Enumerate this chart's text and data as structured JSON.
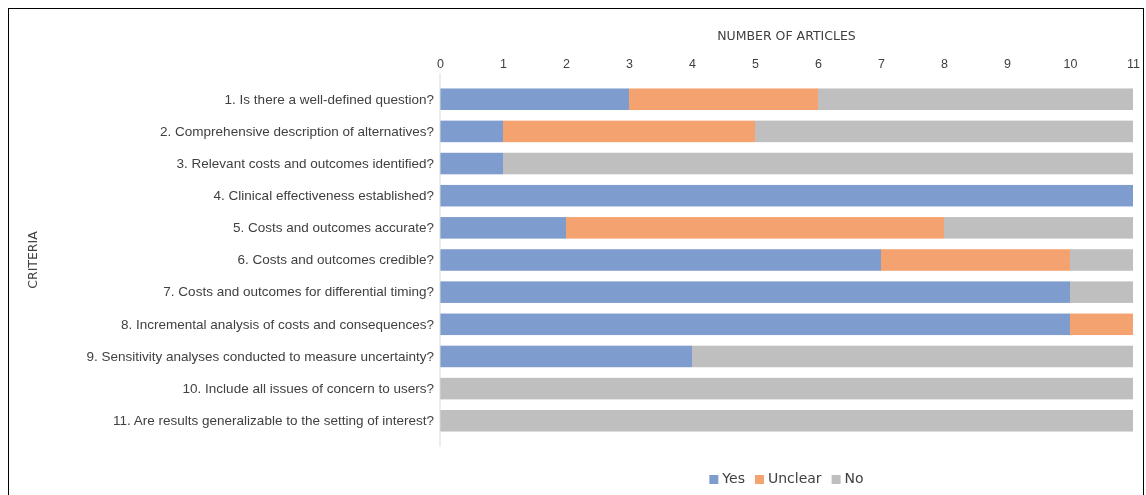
{
  "chart_data": {
    "type": "bar",
    "orientation": "horizontal",
    "stacked": true,
    "xlabel": "NUMBER OF ARTICLES",
    "ylabel": "CRITERIA",
    "categories": [
      "1. Is there a well-defined question?",
      "2. Comprehensive description of alternatives?",
      "3. Relevant costs and outcomes identified?",
      "4. Clinical effectiveness established?",
      "5. Costs and outcomes accurate?",
      "6. Costs and outcomes credible?",
      "7. Costs and outcomes for differential timing?",
      "8. Incremental analysis of costs and consequences?",
      "9. Sensitivity analyses conducted to measure uncertainty?",
      "10. Include all issues of concern to users?",
      "11. Are results generalizable to the setting of interest?"
    ],
    "series": [
      {
        "name": "Yes",
        "color": "#7f9ccf",
        "values": [
          3,
          1,
          1,
          11,
          2,
          7,
          10,
          10,
          4,
          0,
          0
        ]
      },
      {
        "name": "Unclear",
        "color": "#f4a370",
        "values": [
          3,
          4,
          0,
          0,
          6,
          3,
          0,
          1,
          0,
          0,
          0
        ]
      },
      {
        "name": "No",
        "color": "#bfbfbf",
        "values": [
          5,
          6,
          10,
          0,
          3,
          1,
          1,
          0,
          7,
          11,
          11
        ]
      }
    ],
    "xlim": [
      0,
      11
    ],
    "xticks": [
      0,
      1,
      2,
      3,
      4,
      5,
      6,
      7,
      8,
      9,
      10,
      11
    ],
    "legend": "bottom"
  }
}
